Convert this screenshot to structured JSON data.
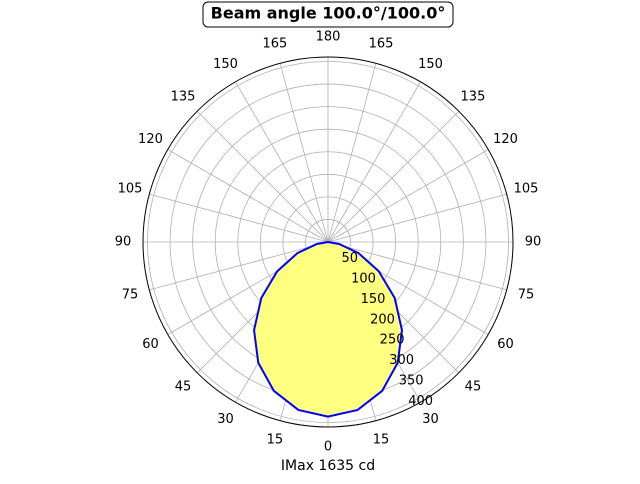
{
  "chart_data": {
    "type": "polar",
    "title": "Beam angle 100.0°/100.0°",
    "xlabel": "IMax 1635 cd",
    "theta": [
      -90,
      -80,
      -70,
      -60,
      -50,
      -40,
      -30,
      -20,
      -10,
      0,
      10,
      20,
      30,
      40,
      50,
      60,
      70,
      80,
      90
    ],
    "series": [
      {
        "color": "#0000ff",
        "fill": "#ffff80",
        "values": [
          0,
          25,
          72,
          130,
          193,
          255,
          309,
          351,
          378,
          387,
          378,
          351,
          309,
          255,
          193,
          130,
          72,
          25,
          0
        ]
      }
    ],
    "rlim": [
      0,
      410
    ],
    "rticks": [
      50,
      100,
      150,
      200,
      250,
      300,
      350,
      400
    ],
    "thetaticks": [
      {
        "value": -165,
        "label": "165"
      },
      {
        "value": -150,
        "label": "150"
      },
      {
        "value": -135,
        "label": "135"
      },
      {
        "value": -120,
        "label": "120"
      },
      {
        "value": -105,
        "label": "105"
      },
      {
        "value": -90,
        "label": "90"
      },
      {
        "value": -75,
        "label": "75"
      },
      {
        "value": -60,
        "label": "60"
      },
      {
        "value": -45,
        "label": "45"
      },
      {
        "value": -30,
        "label": "30"
      },
      {
        "value": -15,
        "label": "15"
      },
      0,
      15,
      30,
      45,
      60,
      75,
      90,
      105,
      120,
      135,
      150,
      165,
      180
    ],
    "grid": true
  }
}
